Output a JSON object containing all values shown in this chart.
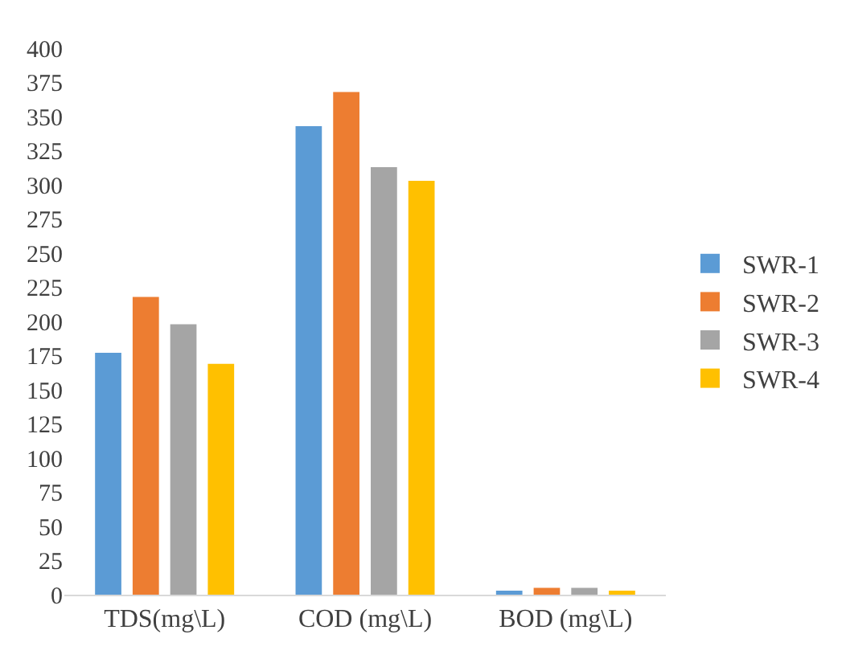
{
  "chart_data": {
    "type": "bar",
    "categories": [
      "TDS(mg\\L)",
      "COD (mg\\L)",
      "BOD (mg\\L)"
    ],
    "series": [
      {
        "name": "SWR-1",
        "color": "#5b9bd5",
        "values": [
          177,
          343,
          3
        ]
      },
      {
        "name": "SWR-2",
        "color": "#ed7d31",
        "values": [
          218,
          368,
          5
        ]
      },
      {
        "name": "SWR-3",
        "color": "#a5a5a5",
        "values": [
          198,
          313,
          5
        ]
      },
      {
        "name": "SWR-4",
        "color": "#ffc000",
        "values": [
          169,
          303,
          3
        ]
      }
    ],
    "ylim": [
      0,
      400
    ],
    "yticks": [
      0,
      25,
      50,
      75,
      100,
      125,
      150,
      175,
      200,
      225,
      250,
      275,
      300,
      325,
      350,
      375,
      400
    ],
    "grid": false,
    "legend": "right"
  }
}
